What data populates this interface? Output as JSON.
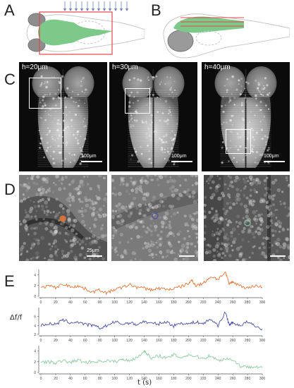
{
  "panels": {
    "a": "A",
    "b": "B",
    "c": "C",
    "d": "D",
    "e": "E"
  },
  "colors": {
    "orange": "#e0753a",
    "blue": "#4b4ea3",
    "green": "#8fcaa3",
    "brain_green": "#7cc98a",
    "red_box": "#e04848",
    "laser_blue": "#6d7fb8"
  },
  "panel_c": {
    "slices": [
      {
        "depth_label": "h=20μm",
        "scale_label": "100μm"
      },
      {
        "depth_label": "h=30μm",
        "scale_label": "100μm"
      },
      {
        "depth_label": "h=40μm",
        "scale_label": "100μm"
      }
    ]
  },
  "panel_d": {
    "zooms": [
      {
        "scale_label": "25μm",
        "roi_color": "#e0753a"
      },
      {
        "scale_label": "",
        "roi_color": "#4b4ea3"
      },
      {
        "scale_label": "",
        "roi_color": "#8fcaa3"
      }
    ]
  },
  "chart_data": {
    "type": "line",
    "title": "",
    "xlabel": "t (s)",
    "ylabel": "Δf/f",
    "xlim": [
      0,
      300
    ],
    "x_ticks": [
      0,
      20,
      40,
      60,
      80,
      100,
      120,
      140,
      160,
      180,
      200,
      220,
      240,
      260,
      280,
      300
    ],
    "traces": [
      {
        "color": "#e0753a",
        "ylim": [
          0,
          5
        ],
        "y_ticks": [
          0,
          2,
          4
        ],
        "points": [
          [
            0,
            1.5
          ],
          [
            10,
            2.0
          ],
          [
            20,
            1.6
          ],
          [
            30,
            2.3
          ],
          [
            40,
            1.8
          ],
          [
            50,
            1.9
          ],
          [
            60,
            1.4
          ],
          [
            70,
            0.8
          ],
          [
            80,
            1.2
          ],
          [
            90,
            0.6
          ],
          [
            100,
            1.3
          ],
          [
            110,
            1.6
          ],
          [
            120,
            2.2
          ],
          [
            130,
            1.7
          ],
          [
            140,
            1.5
          ],
          [
            150,
            1.2
          ],
          [
            160,
            1.5
          ],
          [
            170,
            1.3
          ],
          [
            180,
            1.4
          ],
          [
            190,
            1.8
          ],
          [
            200,
            2.4
          ],
          [
            205,
            3.0
          ],
          [
            210,
            2.0
          ],
          [
            220,
            2.4
          ],
          [
            230,
            3.7
          ],
          [
            240,
            3.2
          ],
          [
            250,
            4.5
          ],
          [
            255,
            2.3
          ],
          [
            260,
            2.7
          ],
          [
            270,
            2.0
          ],
          [
            280,
            1.5
          ],
          [
            290,
            2.0
          ],
          [
            300,
            1.7
          ]
        ]
      },
      {
        "color": "#4b4ea3",
        "ylim": [
          2,
          8
        ],
        "y_ticks": [
          2,
          4,
          6
        ],
        "points": [
          [
            0,
            4.0
          ],
          [
            10,
            4.4
          ],
          [
            20,
            4.2
          ],
          [
            30,
            5.2
          ],
          [
            40,
            4.6
          ],
          [
            50,
            4.8
          ],
          [
            60,
            4.2
          ],
          [
            70,
            4.0
          ],
          [
            80,
            3.4
          ],
          [
            90,
            4.0
          ],
          [
            100,
            4.8
          ],
          [
            110,
            4.3
          ],
          [
            120,
            4.6
          ],
          [
            130,
            4.2
          ],
          [
            140,
            4.9
          ],
          [
            150,
            4.4
          ],
          [
            160,
            4.4
          ],
          [
            170,
            4.8
          ],
          [
            180,
            3.9
          ],
          [
            190,
            4.6
          ],
          [
            200,
            4.3
          ],
          [
            210,
            4.8
          ],
          [
            220,
            4.4
          ],
          [
            230,
            5.4
          ],
          [
            240,
            4.0
          ],
          [
            250,
            7.0
          ],
          [
            255,
            4.2
          ],
          [
            260,
            4.6
          ],
          [
            270,
            4.0
          ],
          [
            280,
            4.8
          ],
          [
            290,
            3.8
          ],
          [
            300,
            3.2
          ]
        ]
      },
      {
        "color": "#8fcaa3",
        "ylim": [
          0,
          5
        ],
        "y_ticks": [
          0,
          2,
          4
        ],
        "points": [
          [
            0,
            1.9
          ],
          [
            10,
            2.0
          ],
          [
            20,
            1.8
          ],
          [
            30,
            2.2
          ],
          [
            40,
            1.9
          ],
          [
            50,
            2.3
          ],
          [
            60,
            1.9
          ],
          [
            70,
            2.0
          ],
          [
            80,
            2.1
          ],
          [
            90,
            2.2
          ],
          [
            100,
            2.0
          ],
          [
            110,
            2.4
          ],
          [
            120,
            2.3
          ],
          [
            130,
            2.7
          ],
          [
            140,
            4.0
          ],
          [
            145,
            3.4
          ],
          [
            150,
            2.5
          ],
          [
            160,
            3.2
          ],
          [
            170,
            2.6
          ],
          [
            180,
            3.3
          ],
          [
            190,
            2.8
          ],
          [
            200,
            3.3
          ],
          [
            210,
            3.0
          ],
          [
            220,
            2.6
          ],
          [
            230,
            3.2
          ],
          [
            240,
            2.2
          ],
          [
            250,
            2.6
          ],
          [
            260,
            2.4
          ],
          [
            270,
            1.2
          ],
          [
            280,
            1.0
          ],
          [
            290,
            1.2
          ],
          [
            300,
            0.9
          ]
        ]
      }
    ]
  }
}
